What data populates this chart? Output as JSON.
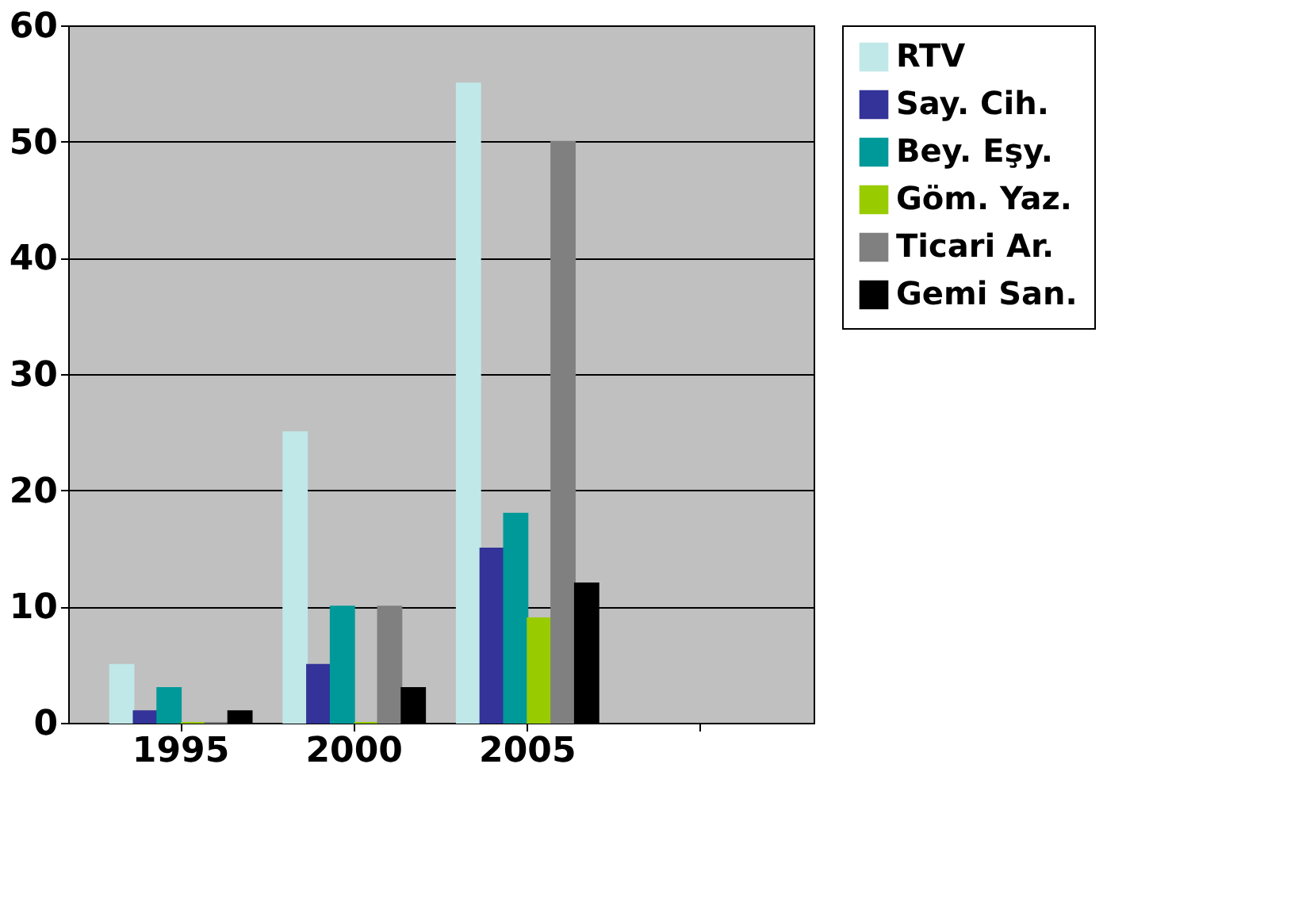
{
  "chart_data": {
    "type": "bar",
    "categories": [
      "1995",
      "2000",
      "2005",
      null
    ],
    "series": [
      {
        "name": "RTV",
        "color": "#c0e8e8",
        "values": [
          5,
          25,
          55,
          null
        ]
      },
      {
        "name": "Say. Cih.",
        "color": "#333399",
        "values": [
          1,
          5,
          15,
          null
        ]
      },
      {
        "name": "Bey. Eşy.",
        "color": "#009999",
        "values": [
          3,
          10,
          18,
          null
        ]
      },
      {
        "name": "Göm. Yaz.",
        "color": "#99cc00",
        "values": [
          0,
          0,
          9,
          null
        ]
      },
      {
        "name": "Ticari Ar.",
        "color": "#808080",
        "values": [
          0,
          10,
          50,
          null
        ]
      },
      {
        "name": "Gemi San.",
        "color": "#000000",
        "values": [
          1,
          3,
          12,
          null
        ]
      }
    ],
    "ylim": [
      0,
      60
    ],
    "yticks": [
      0,
      10,
      20,
      30,
      40,
      50,
      60
    ],
    "grid": "y",
    "legend": "right"
  }
}
